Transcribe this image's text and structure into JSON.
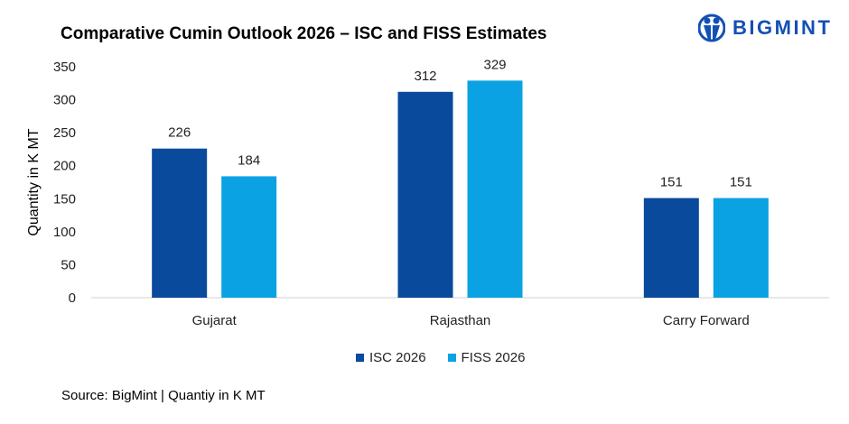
{
  "chart_data": {
    "type": "bar",
    "title": "Comparative Cumin Outlook 2026 – ISC and FISS Estimates",
    "ylabel": "Quantity in K MT",
    "xlabel": "",
    "categories": [
      "Gujarat",
      "Rajasthan",
      "Carry Forward"
    ],
    "series": [
      {
        "name": "ISC 2026",
        "values": [
          226,
          312,
          151
        ],
        "color": "#0a4a9c"
      },
      {
        "name": "FISS 2026",
        "values": [
          184,
          329,
          151
        ],
        "color": "#0aa2e2"
      }
    ],
    "ylim": [
      0,
      350
    ],
    "yticks": [
      0,
      50,
      100,
      150,
      200,
      250,
      300,
      350
    ],
    "grid": false,
    "legend_position": "bottom",
    "data_labels": true
  },
  "logo": {
    "text": "BIGMINT",
    "color": "#1450b4"
  },
  "source": "Source: BigMint | Quantiy in K MT"
}
